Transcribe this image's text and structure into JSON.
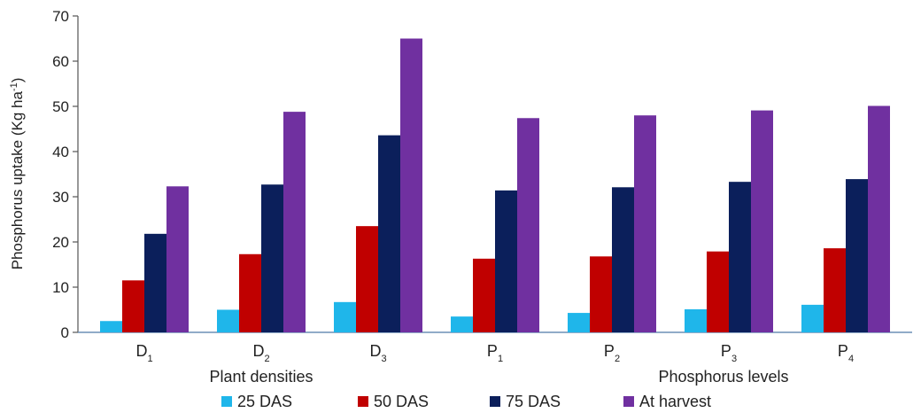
{
  "chart_data": {
    "type": "bar",
    "ylabel": "Phosphorus uptake (Kg ha",
    "ylabel_sup": "-1",
    "ylabel_end": ")",
    "ylim": [
      0,
      70
    ],
    "yticks": [
      0,
      10,
      20,
      30,
      40,
      50,
      60,
      70
    ],
    "grid": false,
    "legend_position": "bottom",
    "categories": [
      {
        "base": "D",
        "sub": "1"
      },
      {
        "base": "D",
        "sub": "2"
      },
      {
        "base": "D",
        "sub": "3"
      },
      {
        "base": "P",
        "sub": "1"
      },
      {
        "base": "P",
        "sub": "2"
      },
      {
        "base": "P",
        "sub": "3"
      },
      {
        "base": "P",
        "sub": "4"
      }
    ],
    "group_labels": [
      {
        "text": "Plant densities",
        "under": "D"
      },
      {
        "text": "Phosphorus levels",
        "under": "P"
      }
    ],
    "series": [
      {
        "name": "25 DAS",
        "color": "#1fb6ea",
        "values": [
          2.5,
          5.0,
          6.7,
          3.5,
          4.3,
          5.1,
          6.1
        ]
      },
      {
        "name": "50 DAS",
        "color": "#c00000",
        "values": [
          11.5,
          17.3,
          23.5,
          16.3,
          16.8,
          17.9,
          18.6
        ]
      },
      {
        "name": "75 DAS",
        "color": "#0b1f5b",
        "values": [
          21.8,
          32.7,
          43.6,
          31.4,
          32.1,
          33.3,
          33.9
        ]
      },
      {
        "name": "At harvest",
        "color": "#7030a0",
        "values": [
          32.3,
          48.8,
          65.0,
          47.4,
          48.0,
          49.1,
          50.1
        ]
      }
    ]
  }
}
